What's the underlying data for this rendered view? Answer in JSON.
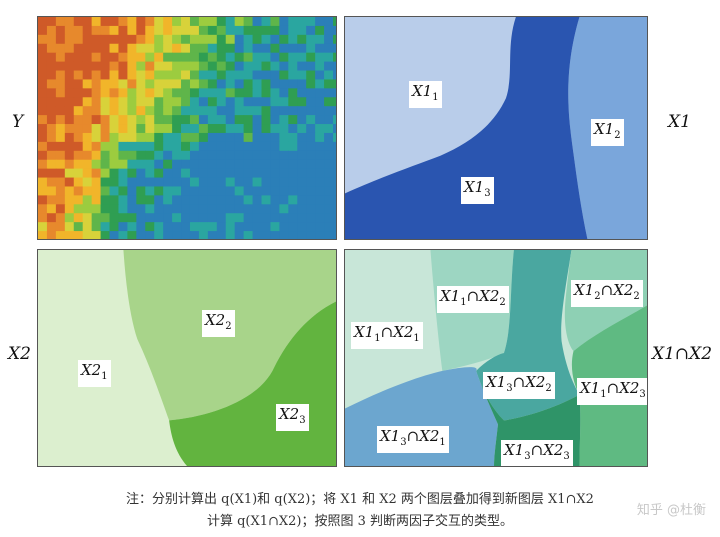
{
  "side_labels": {
    "y": "Y",
    "x1": "X1",
    "x2": "X2",
    "x1x2": "X1∩X2"
  },
  "x1_panel": {
    "r1_base": "X1",
    "r1_sub": "1",
    "r2_base": "X1",
    "r2_sub": "2",
    "r3_base": "X1",
    "r3_sub": "3"
  },
  "x2_panel": {
    "r1_base": "X2",
    "r1_sub": "1",
    "r2_base": "X2",
    "r2_sub": "2",
    "r3_base": "X2",
    "r3_sub": "3"
  },
  "inter_panel": {
    "a_x1": "X1",
    "a_s1": "1",
    "a_op": "∩",
    "a_x2": "X2",
    "a_s2": "2",
    "b_x1": "X1",
    "b_s1": "2",
    "b_op": "∩",
    "b_x2": "X2",
    "b_s2": "2",
    "c_x1": "X1",
    "c_s1": "1",
    "c_op": "∩",
    "c_x2": "X2",
    "c_s2": "1",
    "d_x1": "X1",
    "d_s1": "3",
    "d_op": "∩",
    "d_x2": "X2",
    "d_s2": "2",
    "e_x1": "X1",
    "e_s1": "1",
    "e_op": "∩",
    "e_x2": "X2",
    "e_s2": "3",
    "f_x1": "X1",
    "f_s1": "3",
    "f_op": "∩",
    "f_x2": "X2",
    "f_s2": "1",
    "g_x1": "X1",
    "g_s1": "3",
    "g_op": "∩",
    "g_x2": "X2",
    "g_s2": "3"
  },
  "caption": {
    "line1": "注：分别计算出 q(X1)和 q(X2)；将 X1 和 X2 两个图层叠加得到新图层 X1∩X2",
    "line2": "计算 q(X1∩X2)；按照图 3 判断两因子交互的类型。"
  },
  "watermark": "知乎 @杜衡",
  "colors": {
    "x1_light": "#b9cdea",
    "x1_mid": "#7aa6db",
    "x1_dark": "#2a55b0",
    "x2_pale": "#dcefcf",
    "x2_mid": "#a8d48a",
    "x2_dark": "#62b43f"
  }
}
